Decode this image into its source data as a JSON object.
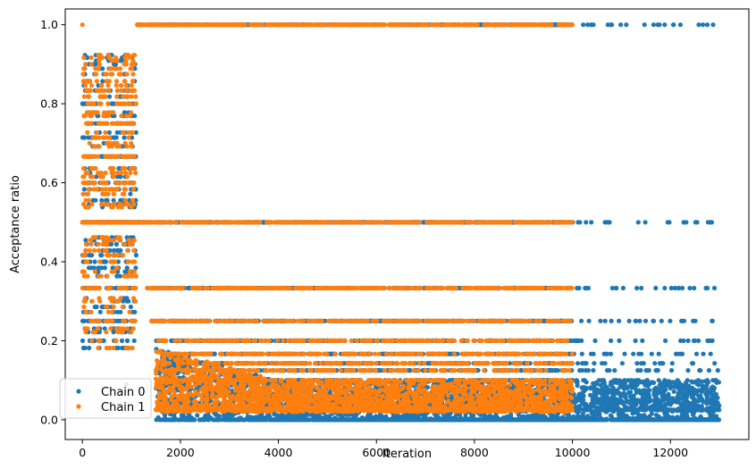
{
  "chart_data": {
    "type": "scatter",
    "title": "",
    "xlabel": "Iteration",
    "ylabel": "Acceptance ratio",
    "xlim": [
      -350,
      13600
    ],
    "ylim": [
      -0.05,
      1.04
    ],
    "xticks": [
      0,
      2000,
      4000,
      6000,
      8000,
      10000,
      12000
    ],
    "xtick_labels": [
      "0",
      "2000",
      "4000",
      "6000",
      "8000",
      "10000",
      "12000"
    ],
    "yticks": [
      0.0,
      0.2,
      0.4,
      0.6,
      0.8,
      1.0
    ],
    "ytick_labels": [
      "0.0",
      "0.2",
      "0.4",
      "0.6",
      "0.8",
      "1.0"
    ],
    "grid": false,
    "legend_position": "lower-left",
    "series": [
      {
        "name": "Chain 0",
        "color": "#1f77b4",
        "iterations": 13000,
        "clusters": [
          {
            "x": [
              0,
              1100
            ],
            "y": [
              0.18,
              0.93
            ],
            "density": "dense"
          },
          {
            "x": [
              1100,
              13000
            ],
            "y": [
              1.0,
              1.0
            ],
            "density": "dense until 10000, sparse after"
          },
          {
            "x": [
              1100,
              13000
            ],
            "y": [
              0.5,
              0.5
            ],
            "density": "dense until 10000, sparse after"
          },
          {
            "x": [
              1300,
              13000
            ],
            "y": [
              0.333,
              0.333
            ],
            "density": "dense until 10000, sparse after"
          },
          {
            "x": [
              1300,
              13000
            ],
            "y": [
              0.25,
              0.25
            ],
            "density": "dense until 10000, sparse after"
          },
          {
            "x": [
              1500,
              13000
            ],
            "y": [
              0.0,
              0.2
            ],
            "density": "dense"
          },
          {
            "x": [
              4000,
              13000
            ],
            "y": [
              0.0,
              0.0
            ],
            "density": "dense"
          }
        ],
        "outliers": [
          {
            "x": 900,
            "y": 0.09
          }
        ]
      },
      {
        "name": "Chain 1",
        "color": "#ff7f0e",
        "iterations": 10000,
        "clusters": [
          {
            "x": [
              0,
              1100
            ],
            "y": [
              0.17,
              0.93
            ],
            "density": "dense"
          },
          {
            "x": [
              1100,
              10000
            ],
            "y": [
              1.0,
              1.0
            ],
            "density": "dense"
          },
          {
            "x": [
              1100,
              10000
            ],
            "y": [
              0.5,
              0.5
            ],
            "density": "dense"
          },
          {
            "x": [
              1300,
              10000
            ],
            "y": [
              0.333,
              0.333
            ],
            "density": "dense"
          },
          {
            "x": [
              1400,
              10000
            ],
            "y": [
              0.25,
              0.25
            ],
            "density": "dense"
          },
          {
            "x": [
              1500,
              10000
            ],
            "y": [
              0.02,
              0.2
            ],
            "density": "dense"
          }
        ],
        "outliers": [
          {
            "x": 0,
            "y": 1.0
          }
        ]
      }
    ]
  }
}
